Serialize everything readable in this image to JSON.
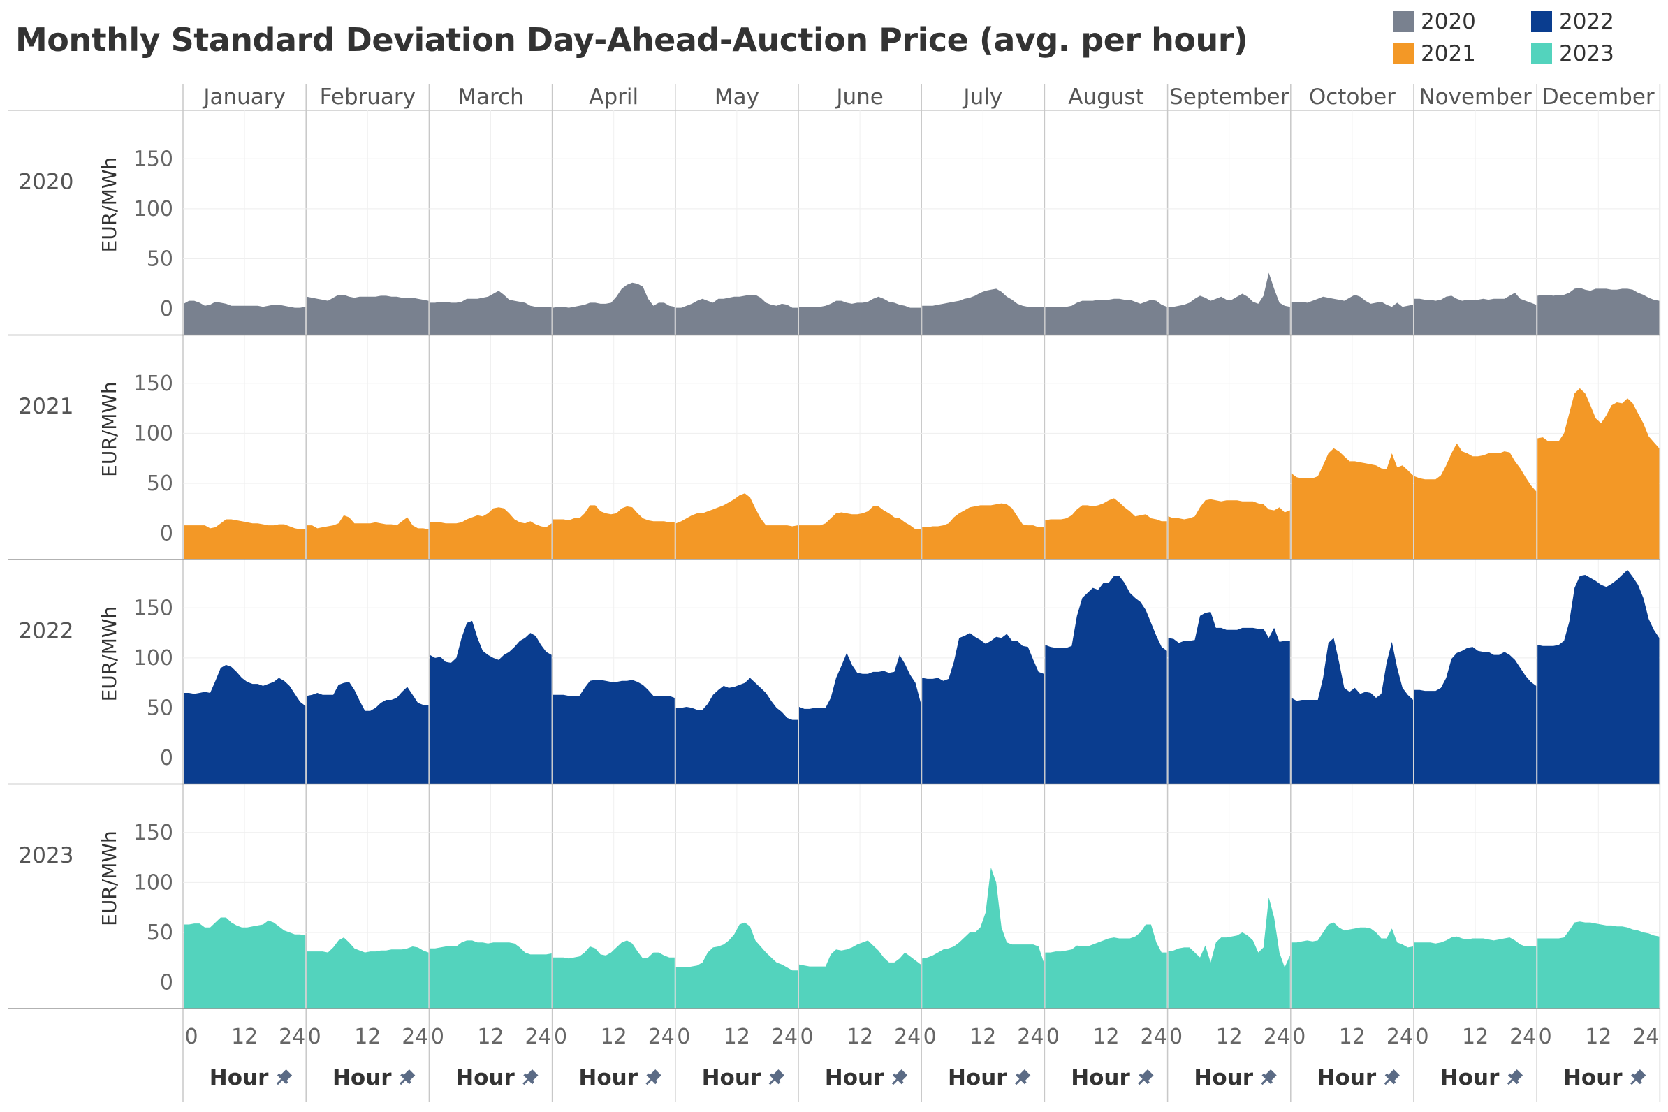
{
  "title": "Monthly Standard Deviation Day-Ahead-Auction Price (avg. per hour)",
  "legend": [
    {
      "label": "2020",
      "color": "#79818f"
    },
    {
      "label": "2022",
      "color": "#0a3d8f"
    },
    {
      "label": "2021",
      "color": "#f39826"
    },
    {
      "label": "2023",
      "color": "#53d3bd"
    }
  ],
  "chart_data": {
    "type": "area",
    "title": "Monthly Standard Deviation Day-Ahead-Auction Price (avg. per hour)",
    "months": [
      "January",
      "February",
      "March",
      "April",
      "May",
      "June",
      "July",
      "August",
      "September",
      "October",
      "November",
      "December"
    ],
    "rows": [
      {
        "label": "2020",
        "color": "#79818f"
      },
      {
        "label": "2021",
        "color": "#f39826"
      },
      {
        "label": "2022",
        "color": "#0a3d8f"
      },
      {
        "label": "2023",
        "color": "#53d3bd"
      }
    ],
    "ylabel": "EUR/MWh",
    "xlabel": "Hour",
    "x": [
      0,
      1,
      2,
      3,
      4,
      5,
      6,
      7,
      8,
      9,
      10,
      11,
      12,
      13,
      14,
      15,
      16,
      17,
      18,
      19,
      20,
      21,
      22,
      23
    ],
    "x_ticks": [
      "0",
      "12",
      "24"
    ],
    "y_ticks": [
      "0",
      "50",
      "100",
      "150"
    ],
    "ylim": [
      -15,
      190
    ],
    "grid": true,
    "legend_position": "top-right",
    "series": {
      "2020": [
        [
          5,
          8,
          8,
          6,
          3,
          4,
          7,
          6,
          5,
          3,
          3,
          3,
          3,
          3,
          3,
          2,
          3,
          4,
          4,
          3,
          2,
          1,
          1,
          2
        ],
        [
          12,
          11,
          10,
          9,
          8,
          11,
          14,
          14,
          12,
          11,
          12,
          12,
          12,
          12,
          13,
          13,
          12,
          12,
          11,
          11,
          11,
          10,
          9,
          8
        ],
        [
          6,
          6,
          7,
          7,
          6,
          6,
          7,
          10,
          10,
          10,
          11,
          12,
          15,
          18,
          14,
          9,
          8,
          7,
          6,
          3,
          2,
          2,
          2,
          2
        ],
        [
          1,
          2,
          2,
          1,
          2,
          3,
          4,
          6,
          6,
          5,
          5,
          6,
          12,
          20,
          24,
          26,
          25,
          22,
          10,
          3,
          6,
          6,
          3,
          2
        ],
        [
          1,
          1,
          3,
          5,
          8,
          10,
          8,
          6,
          10,
          10,
          11,
          12,
          12,
          13,
          14,
          14,
          11,
          6,
          4,
          3,
          5,
          4,
          1,
          1
        ],
        [
          2,
          2,
          2,
          2,
          2,
          3,
          5,
          8,
          8,
          6,
          5,
          6,
          6,
          7,
          10,
          12,
          10,
          7,
          6,
          4,
          3,
          1,
          1,
          1
        ],
        [
          3,
          3,
          3,
          4,
          5,
          6,
          7,
          8,
          10,
          11,
          13,
          16,
          18,
          19,
          20,
          17,
          12,
          9,
          5,
          3,
          2,
          2,
          2,
          2
        ],
        [
          2,
          2,
          2,
          2,
          2,
          3,
          6,
          8,
          8,
          8,
          9,
          9,
          9,
          10,
          10,
          9,
          9,
          7,
          5,
          7,
          9,
          8,
          4,
          2
        ],
        [
          2,
          2,
          3,
          4,
          6,
          10,
          13,
          11,
          8,
          10,
          12,
          9,
          9,
          12,
          15,
          12,
          7,
          5,
          13,
          36,
          20,
          6,
          3,
          2
        ],
        [
          7,
          7,
          7,
          6,
          8,
          10,
          12,
          11,
          10,
          9,
          8,
          11,
          14,
          12,
          8,
          5,
          6,
          7,
          4,
          2,
          6,
          2,
          3,
          4
        ],
        [
          10,
          10,
          9,
          9,
          8,
          9,
          12,
          13,
          10,
          8,
          9,
          9,
          9,
          10,
          9,
          10,
          10,
          10,
          13,
          16,
          10,
          8,
          6,
          4
        ],
        [
          13,
          14,
          14,
          13,
          14,
          14,
          16,
          20,
          21,
          19,
          18,
          20,
          20,
          20,
          19,
          19,
          20,
          20,
          19,
          16,
          14,
          11,
          9,
          8
        ]
      ],
      "2021": [
        [
          8,
          8,
          8,
          8,
          8,
          5,
          6,
          10,
          14,
          14,
          13,
          12,
          11,
          10,
          10,
          9,
          8,
          8,
          9,
          9,
          7,
          5,
          4,
          4
        ],
        [
          8,
          8,
          5,
          6,
          7,
          8,
          10,
          18,
          16,
          10,
          10,
          10,
          10,
          11,
          10,
          9,
          9,
          8,
          12,
          16,
          8,
          5,
          5,
          4
        ],
        [
          11,
          11,
          11,
          10,
          10,
          10,
          11,
          14,
          16,
          18,
          17,
          20,
          25,
          26,
          25,
          20,
          14,
          11,
          10,
          12,
          9,
          7,
          6,
          10
        ],
        [
          14,
          14,
          14,
          13,
          15,
          15,
          20,
          28,
          28,
          22,
          20,
          19,
          20,
          25,
          27,
          26,
          20,
          15,
          13,
          12,
          12,
          12,
          11,
          11
        ],
        [
          10,
          12,
          15,
          18,
          20,
          20,
          22,
          24,
          26,
          28,
          31,
          34,
          38,
          40,
          36,
          25,
          15,
          8,
          8,
          8,
          8,
          8,
          7,
          8
        ],
        [
          8,
          8,
          8,
          8,
          8,
          10,
          15,
          20,
          21,
          20,
          19,
          19,
          20,
          22,
          27,
          27,
          23,
          20,
          16,
          15,
          11,
          8,
          4,
          4
        ],
        [
          6,
          6,
          7,
          7,
          8,
          10,
          16,
          20,
          23,
          26,
          27,
          28,
          28,
          28,
          29,
          30,
          29,
          25,
          17,
          9,
          8,
          8,
          6,
          6
        ],
        [
          13,
          14,
          14,
          14,
          15,
          18,
          24,
          28,
          28,
          27,
          28,
          30,
          33,
          35,
          31,
          26,
          22,
          17,
          18,
          19,
          15,
          14,
          12,
          12
        ],
        [
          17,
          15,
          15,
          14,
          15,
          17,
          26,
          33,
          34,
          33,
          32,
          33,
          33,
          33,
          32,
          32,
          32,
          30,
          29,
          24,
          23,
          26,
          21,
          23
        ],
        [
          60,
          56,
          55,
          55,
          55,
          57,
          68,
          80,
          85,
          82,
          77,
          72,
          72,
          71,
          70,
          69,
          68,
          65,
          64,
          80,
          66,
          68,
          63,
          58
        ],
        [
          57,
          55,
          54,
          54,
          54,
          58,
          68,
          80,
          90,
          82,
          80,
          77,
          77,
          78,
          80,
          80,
          80,
          82,
          81,
          72,
          65,
          56,
          48,
          42
        ],
        [
          95,
          96,
          92,
          92,
          92,
          100,
          120,
          140,
          145,
          140,
          128,
          115,
          110,
          118,
          128,
          131,
          130,
          135,
          130,
          120,
          110,
          97,
          91,
          85
        ]
      ],
      "2022": [
        [
          65,
          65,
          64,
          65,
          66,
          65,
          77,
          90,
          93,
          91,
          86,
          80,
          76,
          74,
          74,
          72,
          74,
          76,
          80,
          77,
          72,
          64,
          56,
          52
        ],
        [
          62,
          63,
          65,
          63,
          63,
          63,
          73,
          75,
          76,
          68,
          57,
          47,
          47,
          50,
          55,
          58,
          58,
          60,
          66,
          71,
          63,
          55,
          53,
          53
        ],
        [
          103,
          100,
          101,
          96,
          95,
          100,
          120,
          135,
          137,
          120,
          107,
          103,
          100,
          98,
          103,
          106,
          111,
          117,
          120,
          125,
          122,
          113,
          106,
          103
        ],
        [
          63,
          63,
          63,
          62,
          62,
          62,
          70,
          77,
          78,
          78,
          77,
          76,
          76,
          77,
          77,
          78,
          76,
          73,
          68,
          62,
          62,
          62,
          62,
          60
        ],
        [
          50,
          50,
          51,
          50,
          48,
          48,
          54,
          63,
          68,
          72,
          70,
          71,
          73,
          75,
          80,
          75,
          70,
          65,
          57,
          50,
          46,
          40,
          38,
          38
        ],
        [
          51,
          49,
          49,
          50,
          50,
          50,
          60,
          80,
          92,
          105,
          93,
          85,
          84,
          84,
          86,
          86,
          87,
          85,
          86,
          103,
          94,
          83,
          75,
          55
        ],
        [
          80,
          79,
          79,
          80,
          77,
          79,
          96,
          120,
          122,
          125,
          121,
          118,
          114,
          117,
          121,
          120,
          124,
          117,
          117,
          112,
          111,
          98,
          86,
          84
        ],
        [
          113,
          111,
          110,
          110,
          110,
          112,
          142,
          160,
          165,
          170,
          168,
          175,
          175,
          182,
          182,
          175,
          165,
          160,
          156,
          148,
          135,
          122,
          111,
          107
        ],
        [
          120,
          119,
          115,
          117,
          117,
          118,
          142,
          145,
          146,
          130,
          130,
          128,
          128,
          128,
          130,
          130,
          130,
          129,
          129,
          120,
          130,
          116,
          117,
          117
        ],
        [
          60,
          57,
          58,
          58,
          58,
          58,
          80,
          115,
          120,
          96,
          70,
          66,
          70,
          64,
          66,
          65,
          60,
          64,
          95,
          116,
          90,
          70,
          63,
          58
        ],
        [
          68,
          68,
          67,
          67,
          67,
          70,
          80,
          99,
          105,
          107,
          110,
          111,
          107,
          106,
          106,
          103,
          103,
          106,
          103,
          98,
          90,
          82,
          76,
          72
        ],
        [
          113,
          112,
          112,
          112,
          113,
          117,
          136,
          170,
          182,
          183,
          180,
          177,
          173,
          171,
          174,
          178,
          183,
          188,
          181,
          173,
          160,
          139,
          128,
          120
        ]
      ],
      "2023": [
        [
          58,
          58,
          59,
          59,
          55,
          55,
          60,
          65,
          65,
          60,
          57,
          55,
          55,
          56,
          57,
          58,
          62,
          60,
          56,
          52,
          50,
          48,
          48,
          47
        ],
        [
          31,
          31,
          31,
          31,
          30,
          35,
          42,
          45,
          40,
          34,
          32,
          30,
          31,
          31,
          32,
          32,
          33,
          33,
          33,
          34,
          36,
          35,
          32,
          30
        ],
        [
          34,
          34,
          35,
          36,
          36,
          36,
          40,
          42,
          42,
          40,
          40,
          39,
          40,
          40,
          40,
          40,
          39,
          35,
          30,
          28,
          28,
          28,
          28,
          29
        ],
        [
          25,
          25,
          25,
          24,
          25,
          26,
          30,
          36,
          34,
          28,
          27,
          30,
          35,
          40,
          42,
          39,
          31,
          24,
          25,
          30,
          30,
          27,
          25,
          25
        ],
        [
          15,
          15,
          15,
          16,
          17,
          20,
          30,
          35,
          36,
          38,
          42,
          48,
          58,
          60,
          56,
          42,
          36,
          30,
          25,
          20,
          18,
          15,
          12,
          12
        ],
        [
          18,
          17,
          16,
          16,
          16,
          16,
          28,
          33,
          32,
          33,
          35,
          38,
          40,
          42,
          37,
          32,
          25,
          20,
          20,
          24,
          30,
          26,
          22,
          18
        ],
        [
          24,
          25,
          27,
          30,
          33,
          34,
          36,
          40,
          45,
          50,
          50,
          55,
          70,
          115,
          100,
          55,
          40,
          38,
          38,
          38,
          38,
          38,
          36,
          20
        ],
        [
          30,
          30,
          31,
          31,
          32,
          33,
          37,
          36,
          36,
          38,
          40,
          42,
          44,
          45,
          44,
          44,
          44,
          46,
          50,
          58,
          58,
          40,
          30,
          30
        ],
        [
          31,
          32,
          34,
          35,
          35,
          30,
          25,
          37,
          20,
          40,
          45,
          45,
          46,
          47,
          50,
          47,
          42,
          30,
          35,
          85,
          65,
          30,
          15,
          27
        ],
        [
          40,
          40,
          41,
          42,
          41,
          42,
          50,
          58,
          60,
          55,
          52,
          53,
          54,
          55,
          55,
          54,
          50,
          44,
          44,
          54,
          40,
          38,
          35,
          36
        ],
        [
          40,
          40,
          40,
          40,
          39,
          40,
          42,
          45,
          46,
          44,
          43,
          44,
          44,
          44,
          43,
          42,
          43,
          44,
          45,
          42,
          38,
          36,
          36,
          36
        ],
        [
          44,
          44,
          44,
          44,
          44,
          45,
          52,
          60,
          61,
          60,
          60,
          59,
          58,
          57,
          57,
          56,
          56,
          55,
          53,
          52,
          50,
          49,
          47,
          46
        ]
      ]
    }
  }
}
